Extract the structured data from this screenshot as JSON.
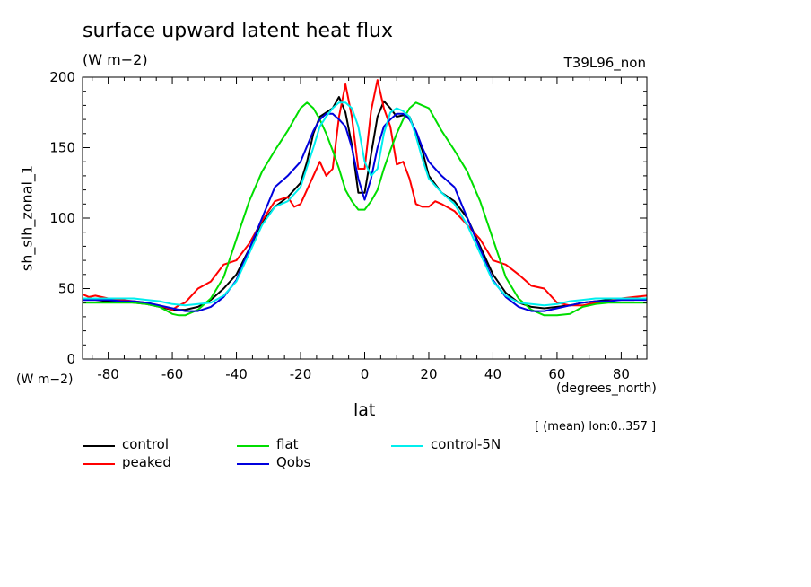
{
  "header": {
    "title": "surface upward latent heat flux",
    "units": "(W m−2)",
    "run": "T39L96_non",
    "y_units": "(W m−2)",
    "x_units": "(degrees_north)",
    "note": "[ (mean) lon:0..357 ]"
  },
  "chart_data": {
    "type": "line",
    "xlabel": "lat",
    "ylabel": "sh_slh_zonal_1",
    "xlim": [
      -88,
      88
    ],
    "ylim": [
      0,
      200
    ],
    "xticks": [
      "-80",
      "-60",
      "-40",
      "-20",
      "0",
      "20",
      "40",
      "60",
      "80"
    ],
    "xtick_values": [
      -80,
      -60,
      -40,
      -20,
      0,
      20,
      40,
      60,
      80
    ],
    "yticks": [
      "0",
      "50",
      "100",
      "150",
      "200"
    ],
    "ytick_values": [
      0,
      50,
      100,
      150,
      200
    ],
    "legend_position": "below",
    "series": [
      {
        "name": "control",
        "color": "#000000",
        "x": [
          -88,
          -84,
          -80,
          -76,
          -72,
          -68,
          -64,
          -60,
          -56,
          -52,
          -48,
          -44,
          -40,
          -36,
          -32,
          -28,
          -24,
          -20,
          -18,
          -16,
          -14,
          -12,
          -10,
          -8,
          -6,
          -4,
          -2,
          0,
          2,
          4,
          6,
          8,
          10,
          12,
          14,
          16,
          18,
          20,
          24,
          28,
          32,
          36,
          40,
          44,
          48,
          52,
          56,
          60,
          64,
          68,
          72,
          76,
          80,
          84,
          88
        ],
        "y": [
          42,
          42,
          41,
          41,
          40,
          39,
          37,
          35,
          35,
          37,
          42,
          50,
          60,
          78,
          97,
          108,
          115,
          125,
          140,
          160,
          172,
          175,
          178,
          186,
          175,
          152,
          118,
          118,
          145,
          172,
          183,
          178,
          172,
          173,
          172,
          160,
          148,
          130,
          118,
          112,
          100,
          80,
          60,
          47,
          40,
          37,
          36,
          37,
          38,
          40,
          41,
          42,
          42,
          42,
          43
        ]
      },
      {
        "name": "peaked",
        "color": "#ff0000",
        "x": [
          -88,
          -86,
          -84,
          -80,
          -76,
          -72,
          -68,
          -64,
          -60,
          -58,
          -56,
          -52,
          -48,
          -44,
          -40,
          -36,
          -32,
          -28,
          -24,
          -22,
          -20,
          -16,
          -14,
          -12,
          -10,
          -8,
          -6,
          -4,
          -2,
          0,
          2,
          4,
          6,
          8,
          10,
          12,
          14,
          16,
          18,
          20,
          22,
          24,
          28,
          32,
          36,
          40,
          44,
          48,
          52,
          56,
          60,
          64,
          68,
          72,
          76,
          80,
          84,
          88
        ],
        "y": [
          46,
          44,
          45,
          43,
          42,
          41,
          40,
          38,
          35,
          38,
          40,
          50,
          55,
          67,
          70,
          82,
          98,
          112,
          115,
          108,
          110,
          130,
          140,
          130,
          135,
          172,
          195,
          172,
          135,
          135,
          176,
          198,
          178,
          165,
          138,
          140,
          128,
          110,
          108,
          108,
          112,
          110,
          105,
          95,
          85,
          70,
          67,
          60,
          52,
          50,
          40,
          38,
          38,
          40,
          41,
          43,
          44,
          45
        ]
      },
      {
        "name": "flat",
        "color": "#00dd00",
        "x": [
          -88,
          -80,
          -76,
          -72,
          -68,
          -64,
          -60,
          -58,
          -56,
          -52,
          -48,
          -44,
          -40,
          -36,
          -32,
          -28,
          -24,
          -20,
          -18,
          -16,
          -14,
          -12,
          -10,
          -8,
          -6,
          -4,
          -2,
          0,
          2,
          4,
          6,
          8,
          10,
          12,
          14,
          16,
          18,
          20,
          24,
          28,
          32,
          36,
          40,
          44,
          48,
          52,
          56,
          60,
          64,
          68,
          72,
          76,
          80,
          84,
          88
        ],
        "y": [
          40,
          40,
          40,
          40,
          39,
          37,
          32,
          31,
          31,
          35,
          43,
          58,
          85,
          112,
          133,
          148,
          162,
          178,
          182,
          178,
          170,
          160,
          148,
          135,
          120,
          112,
          106,
          106,
          112,
          120,
          135,
          148,
          160,
          170,
          178,
          182,
          180,
          178,
          162,
          148,
          133,
          112,
          85,
          58,
          43,
          35,
          31,
          31,
          32,
          37,
          39,
          40,
          40,
          40,
          40
        ]
      },
      {
        "name": "Qobs",
        "color": "#0000dd",
        "x": [
          -88,
          -80,
          -76,
          -72,
          -68,
          -64,
          -60,
          -56,
          -52,
          -48,
          -44,
          -40,
          -36,
          -32,
          -28,
          -24,
          -20,
          -16,
          -14,
          -12,
          -10,
          -8,
          -6,
          -4,
          -2,
          0,
          2,
          4,
          6,
          8,
          10,
          12,
          14,
          16,
          18,
          20,
          24,
          28,
          32,
          36,
          40,
          44,
          48,
          52,
          56,
          60,
          64,
          68,
          72,
          76,
          80,
          84,
          88
        ],
        "y": [
          42,
          42,
          41,
          41,
          40,
          38,
          36,
          34,
          34,
          37,
          44,
          56,
          78,
          100,
          122,
          130,
          140,
          162,
          170,
          174,
          174,
          170,
          165,
          150,
          128,
          113,
          128,
          150,
          165,
          170,
          174,
          174,
          170,
          162,
          150,
          140,
          130,
          122,
          100,
          78,
          56,
          44,
          37,
          34,
          34,
          36,
          38,
          40,
          41,
          41,
          42,
          42,
          42
        ]
      },
      {
        "name": "control-5N",
        "color": "#00eeee",
        "x": [
          -88,
          -80,
          -76,
          -72,
          -68,
          -64,
          -60,
          -56,
          -52,
          -48,
          -44,
          -40,
          -36,
          -32,
          -28,
          -24,
          -20,
          -16,
          -14,
          -12,
          -10,
          -8,
          -6,
          -4,
          -2,
          0,
          2,
          4,
          6,
          8,
          10,
          12,
          14,
          16,
          18,
          20,
          24,
          28,
          32,
          36,
          40,
          44,
          48,
          52,
          56,
          60,
          64,
          68,
          72,
          76,
          80,
          84,
          88
        ],
        "y": [
          43,
          43,
          43,
          43,
          42,
          41,
          39,
          38,
          39,
          40,
          45,
          55,
          75,
          95,
          108,
          112,
          122,
          150,
          165,
          172,
          178,
          182,
          182,
          178,
          165,
          140,
          130,
          135,
          160,
          175,
          178,
          176,
          172,
          158,
          142,
          128,
          118,
          110,
          95,
          75,
          55,
          45,
          40,
          39,
          38,
          39,
          41,
          42,
          43,
          43,
          43,
          43,
          43
        ]
      }
    ]
  }
}
